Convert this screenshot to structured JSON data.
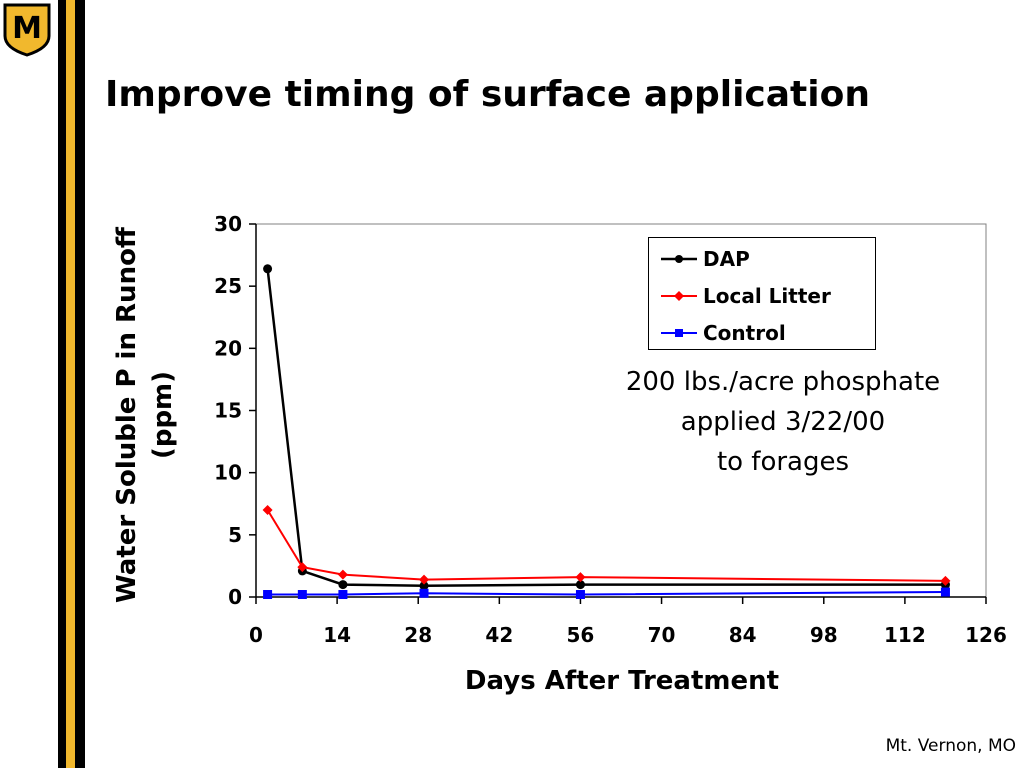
{
  "slide": {
    "title": "Improve timing of surface application",
    "location": "Mt. Vernon, MO",
    "annotation_lines": [
      "200 lbs./acre phosphate",
      "applied 3/22/00",
      "to forages"
    ],
    "logo_letter": "M",
    "colors": {
      "gold": "#F1B82D",
      "black": "#000000"
    }
  },
  "chart_data": {
    "type": "line",
    "title": "",
    "xlabel": "Days After Treatment",
    "ylabel": "Water Soluble P in Runoff (ppm)",
    "xlim": [
      0,
      126
    ],
    "ylim": [
      0,
      30
    ],
    "xticks": [
      0,
      14,
      28,
      42,
      56,
      70,
      84,
      98,
      112,
      126
    ],
    "yticks": [
      0,
      5,
      10,
      15,
      20,
      25,
      30
    ],
    "grid": false,
    "legend_position": "top-right",
    "series": [
      {
        "name": "DAP",
        "color": "#000000",
        "marker": "circle",
        "x": [
          2,
          8,
          15,
          29,
          56,
          119
        ],
        "y": [
          26.4,
          2.1,
          1.0,
          0.9,
          1.0,
          1.0
        ]
      },
      {
        "name": "Local Litter",
        "color": "#FF0000",
        "marker": "diamond",
        "x": [
          2,
          8,
          15,
          29,
          56,
          119
        ],
        "y": [
          7.0,
          2.4,
          1.8,
          1.4,
          1.6,
          1.3
        ]
      },
      {
        "name": "Control",
        "color": "#0000FF",
        "marker": "square",
        "x": [
          2,
          8,
          15,
          29,
          56,
          119
        ],
        "y": [
          0.2,
          0.2,
          0.2,
          0.3,
          0.2,
          0.4
        ]
      }
    ]
  }
}
